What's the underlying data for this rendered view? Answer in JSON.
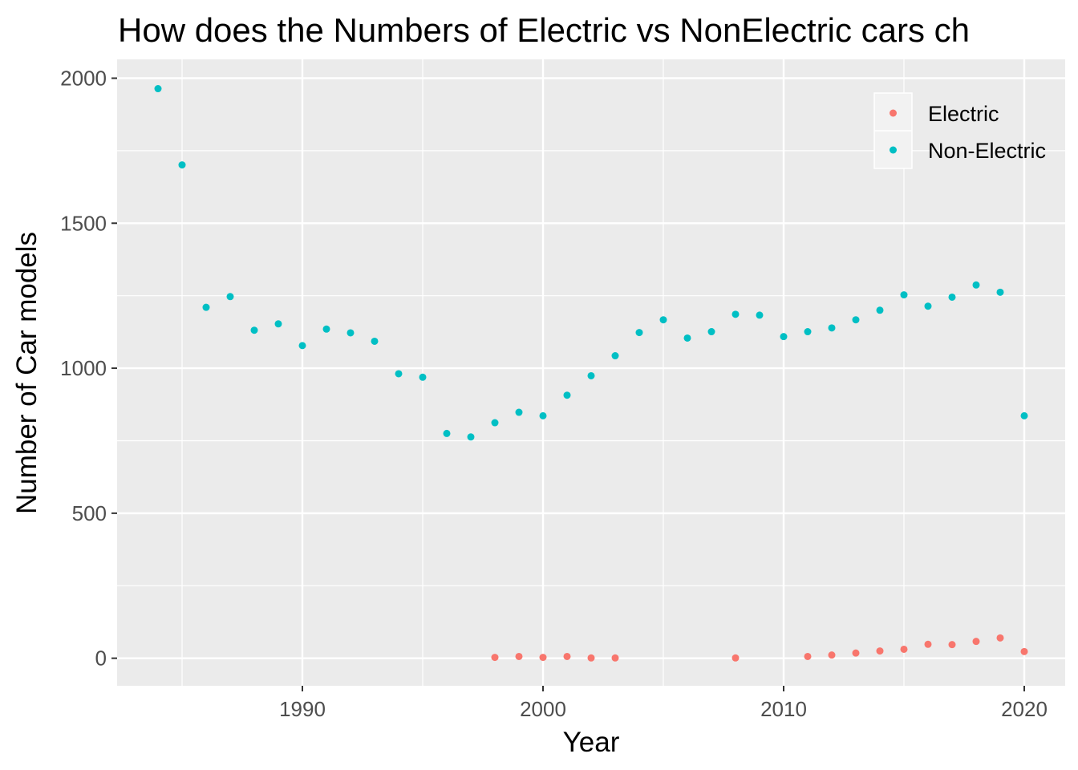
{
  "chart_data": {
    "type": "scatter",
    "title": "How does the Numbers of Electric vs NonElectric cars ch",
    "xlabel": "Year",
    "ylabel": "Number of Car models",
    "xlim": [
      1982.3,
      2021.7
    ],
    "ylim": [
      -95,
      2065
    ],
    "x_ticks": [
      1990,
      2000,
      2010,
      2020
    ],
    "y_ticks": [
      0,
      500,
      1000,
      1500,
      2000
    ],
    "grid": true,
    "legend_position": "top-right",
    "series": [
      {
        "name": "Electric",
        "color": "#F8766D",
        "points": [
          {
            "x": 1998,
            "y": 3
          },
          {
            "x": 1999,
            "y": 6
          },
          {
            "x": 2000,
            "y": 3
          },
          {
            "x": 2001,
            "y": 6
          },
          {
            "x": 2002,
            "y": 1
          },
          {
            "x": 2003,
            "y": 1
          },
          {
            "x": 2008,
            "y": 1
          },
          {
            "x": 2011,
            "y": 6
          },
          {
            "x": 2012,
            "y": 11
          },
          {
            "x": 2013,
            "y": 18
          },
          {
            "x": 2014,
            "y": 25
          },
          {
            "x": 2015,
            "y": 31
          },
          {
            "x": 2016,
            "y": 48
          },
          {
            "x": 2017,
            "y": 47
          },
          {
            "x": 2018,
            "y": 58
          },
          {
            "x": 2019,
            "y": 70
          },
          {
            "x": 2020,
            "y": 23
          }
        ]
      },
      {
        "name": "Non-Electric",
        "color": "#00BFC4",
        "points": [
          {
            "x": 1984,
            "y": 1964
          },
          {
            "x": 1985,
            "y": 1701
          },
          {
            "x": 1986,
            "y": 1210
          },
          {
            "x": 1987,
            "y": 1247
          },
          {
            "x": 1988,
            "y": 1131
          },
          {
            "x": 1989,
            "y": 1153
          },
          {
            "x": 1990,
            "y": 1078
          },
          {
            "x": 1991,
            "y": 1135
          },
          {
            "x": 1992,
            "y": 1122
          },
          {
            "x": 1993,
            "y": 1093
          },
          {
            "x": 1994,
            "y": 981
          },
          {
            "x": 1995,
            "y": 969
          },
          {
            "x": 1996,
            "y": 775
          },
          {
            "x": 1997,
            "y": 763
          },
          {
            "x": 1998,
            "y": 812
          },
          {
            "x": 1999,
            "y": 848
          },
          {
            "x": 2000,
            "y": 836
          },
          {
            "x": 2001,
            "y": 907
          },
          {
            "x": 2002,
            "y": 974
          },
          {
            "x": 2003,
            "y": 1043
          },
          {
            "x": 2004,
            "y": 1123
          },
          {
            "x": 2005,
            "y": 1167
          },
          {
            "x": 2006,
            "y": 1104
          },
          {
            "x": 2007,
            "y": 1126
          },
          {
            "x": 2008,
            "y": 1186
          },
          {
            "x": 2009,
            "y": 1183
          },
          {
            "x": 2010,
            "y": 1109
          },
          {
            "x": 2011,
            "y": 1126
          },
          {
            "x": 2012,
            "y": 1139
          },
          {
            "x": 2013,
            "y": 1167
          },
          {
            "x": 2014,
            "y": 1200
          },
          {
            "x": 2015,
            "y": 1253
          },
          {
            "x": 2016,
            "y": 1214
          },
          {
            "x": 2017,
            "y": 1245
          },
          {
            "x": 2018,
            "y": 1287
          },
          {
            "x": 2019,
            "y": 1262
          },
          {
            "x": 2020,
            "y": 836
          }
        ]
      }
    ]
  }
}
